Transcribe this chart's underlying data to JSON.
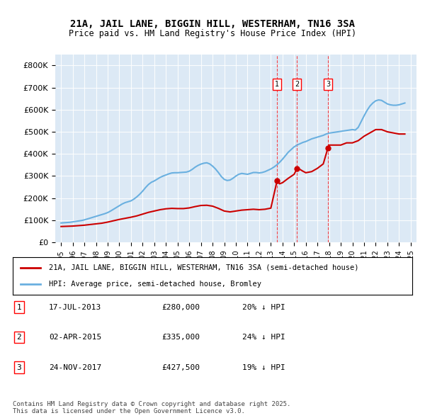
{
  "title": "21A, JAIL LANE, BIGGIN HILL, WESTERHAM, TN16 3SA",
  "subtitle": "Price paid vs. HM Land Registry's House Price Index (HPI)",
  "bg_color": "#dce9f5",
  "plot_bg_color": "#dce9f5",
  "hpi_color": "#6ab0e0",
  "price_color": "#cc0000",
  "ylim": [
    0,
    850000
  ],
  "yticks": [
    0,
    100000,
    200000,
    300000,
    400000,
    500000,
    600000,
    700000,
    800000
  ],
  "xlim_start": 1994.5,
  "xlim_end": 2025.5,
  "transactions": [
    {
      "date_num": 2013.54,
      "price": 280000,
      "label": "1"
    },
    {
      "date_num": 2015.25,
      "price": 335000,
      "label": "2"
    },
    {
      "date_num": 2017.9,
      "price": 427500,
      "label": "3"
    }
  ],
  "legend_entries": [
    "21A, JAIL LANE, BIGGIN HILL, WESTERHAM, TN16 3SA (semi-detached house)",
    "HPI: Average price, semi-detached house, Bromley"
  ],
  "table_rows": [
    {
      "num": "1",
      "date": "17-JUL-2013",
      "price": "£280,000",
      "change": "20% ↓ HPI"
    },
    {
      "num": "2",
      "date": "02-APR-2015",
      "price": "£335,000",
      "change": "24% ↓ HPI"
    },
    {
      "num": "3",
      "date": "24-NOV-2017",
      "price": "£427,500",
      "change": "19% ↓ HPI"
    }
  ],
  "footer": "Contains HM Land Registry data © Crown copyright and database right 2025.\nThis data is licensed under the Open Government Licence v3.0.",
  "hpi_x": [
    1995.0,
    1995.25,
    1995.5,
    1995.75,
    1996.0,
    1996.25,
    1996.5,
    1996.75,
    1997.0,
    1997.25,
    1997.5,
    1997.75,
    1998.0,
    1998.25,
    1998.5,
    1998.75,
    1999.0,
    1999.25,
    1999.5,
    1999.75,
    2000.0,
    2000.25,
    2000.5,
    2000.75,
    2001.0,
    2001.25,
    2001.5,
    2001.75,
    2002.0,
    2002.25,
    2002.5,
    2002.75,
    2003.0,
    2003.25,
    2003.5,
    2003.75,
    2004.0,
    2004.25,
    2004.5,
    2004.75,
    2005.0,
    2005.25,
    2005.5,
    2005.75,
    2006.0,
    2006.25,
    2006.5,
    2006.75,
    2007.0,
    2007.25,
    2007.5,
    2007.75,
    2008.0,
    2008.25,
    2008.5,
    2008.75,
    2009.0,
    2009.25,
    2009.5,
    2009.75,
    2010.0,
    2010.25,
    2010.5,
    2010.75,
    2011.0,
    2011.25,
    2011.5,
    2011.75,
    2012.0,
    2012.25,
    2012.5,
    2012.75,
    2013.0,
    2013.25,
    2013.5,
    2013.75,
    2014.0,
    2014.25,
    2014.5,
    2014.75,
    2015.0,
    2015.25,
    2015.5,
    2015.75,
    2016.0,
    2016.25,
    2016.5,
    2016.75,
    2017.0,
    2017.25,
    2017.5,
    2017.75,
    2018.0,
    2018.25,
    2018.5,
    2018.75,
    2019.0,
    2019.25,
    2019.5,
    2019.75,
    2020.0,
    2020.25,
    2020.5,
    2020.75,
    2021.0,
    2021.25,
    2021.5,
    2021.75,
    2022.0,
    2022.25,
    2022.5,
    2022.75,
    2023.0,
    2023.25,
    2023.5,
    2023.75,
    2024.0,
    2024.25,
    2024.5
  ],
  "hpi_y": [
    88000,
    89000,
    90000,
    91000,
    93000,
    95000,
    97000,
    99000,
    102000,
    106000,
    110000,
    114000,
    118000,
    122000,
    126000,
    130000,
    135000,
    142000,
    150000,
    158000,
    166000,
    174000,
    180000,
    184000,
    188000,
    196000,
    206000,
    218000,
    232000,
    248000,
    262000,
    272000,
    278000,
    286000,
    294000,
    300000,
    305000,
    310000,
    314000,
    315000,
    315000,
    316000,
    317000,
    318000,
    322000,
    330000,
    340000,
    348000,
    354000,
    358000,
    360000,
    355000,
    345000,
    332000,
    316000,
    298000,
    285000,
    280000,
    282000,
    290000,
    300000,
    308000,
    312000,
    310000,
    308000,
    312000,
    316000,
    316000,
    314000,
    316000,
    320000,
    326000,
    332000,
    340000,
    350000,
    362000,
    376000,
    392000,
    408000,
    420000,
    432000,
    440000,
    446000,
    452000,
    456000,
    462000,
    468000,
    472000,
    476000,
    480000,
    484000,
    490000,
    494000,
    496000,
    498000,
    500000,
    502000,
    504000,
    506000,
    508000,
    510000,
    508000,
    520000,
    546000,
    572000,
    596000,
    616000,
    630000,
    640000,
    644000,
    642000,
    634000,
    626000,
    622000,
    620000,
    620000,
    622000,
    626000,
    630000
  ],
  "price_x": [
    1995.0,
    1995.5,
    1996.0,
    1996.5,
    1997.0,
    1997.5,
    1998.0,
    1998.5,
    1999.0,
    1999.5,
    2000.0,
    2000.5,
    2001.0,
    2001.5,
    2002.0,
    2002.5,
    2003.0,
    2003.5,
    2004.0,
    2004.5,
    2005.0,
    2005.5,
    2006.0,
    2006.5,
    2007.0,
    2007.5,
    2008.0,
    2008.5,
    2009.0,
    2009.5,
    2010.0,
    2010.5,
    2011.0,
    2011.5,
    2012.0,
    2012.5,
    2013.0,
    2013.54,
    2013.75,
    2014.0,
    2014.5,
    2015.0,
    2015.25,
    2015.5,
    2015.75,
    2016.0,
    2016.5,
    2017.0,
    2017.5,
    2017.9,
    2018.0,
    2018.5,
    2019.0,
    2019.5,
    2020.0,
    2020.5,
    2021.0,
    2021.5,
    2022.0,
    2022.5,
    2023.0,
    2023.5,
    2024.0,
    2024.5
  ],
  "price_y": [
    72000,
    73000,
    74000,
    76000,
    78000,
    81000,
    84000,
    87000,
    92000,
    98000,
    104000,
    109000,
    114000,
    120000,
    128000,
    136000,
    142000,
    148000,
    152000,
    154000,
    153000,
    153000,
    156000,
    162000,
    167000,
    168000,
    164000,
    154000,
    142000,
    138000,
    142000,
    146000,
    148000,
    150000,
    148000,
    150000,
    155000,
    280000,
    265000,
    270000,
    290000,
    308000,
    335000,
    330000,
    322000,
    315000,
    320000,
    335000,
    355000,
    427500,
    440000,
    440000,
    440000,
    450000,
    450000,
    460000,
    480000,
    495000,
    510000,
    510000,
    500000,
    495000,
    490000,
    490000
  ]
}
